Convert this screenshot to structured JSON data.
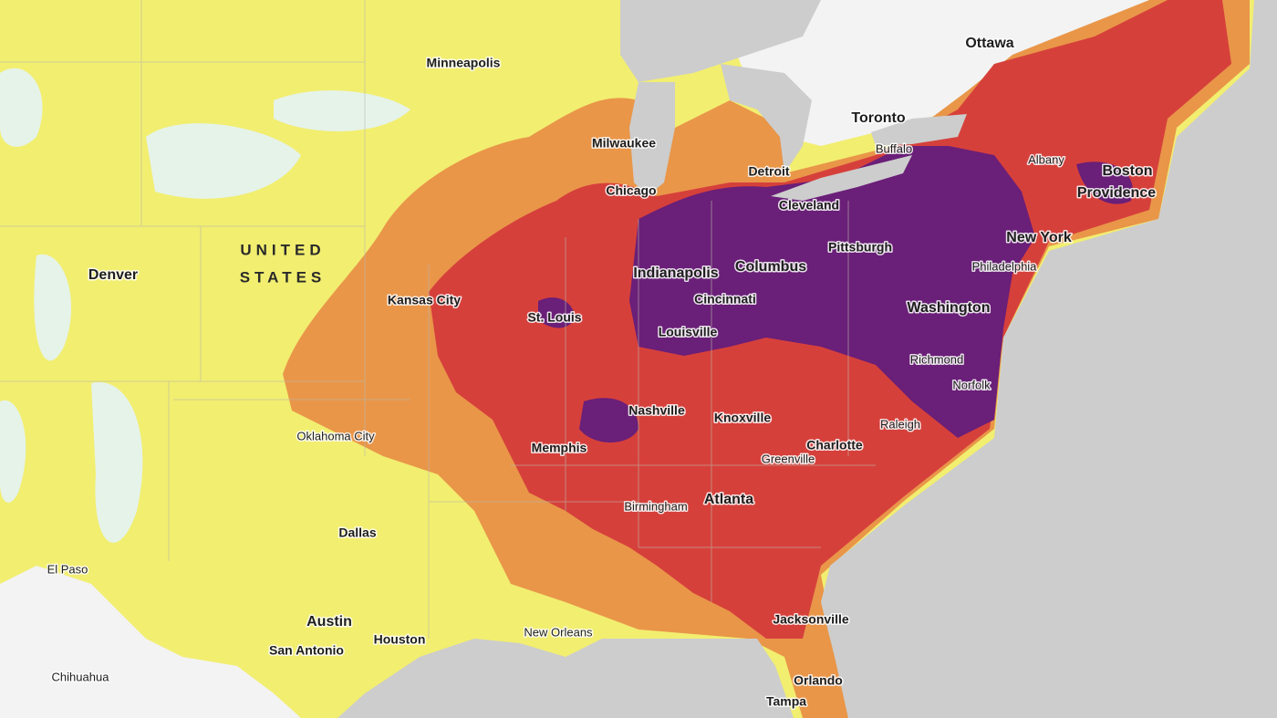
{
  "labels": [
    "Minneapolis",
    "Ottawa",
    "Toronto",
    "Milwaukee",
    "Buffalo",
    "Detroit",
    "Albany",
    "Boston",
    "Providence",
    "Chicago",
    "Cleveland",
    "Denver",
    "New York",
    "Pittsburgh",
    "Indianapolis",
    "Columbus",
    "Philadelphia",
    "Kansas City",
    "Cincinnati",
    "St. Louis",
    "Washington",
    "Louisville",
    "Richmond",
    "Norfolk",
    "Nashville",
    "Knoxville",
    "Raleigh",
    "Oklahoma City",
    "Memphis",
    "Charlotte",
    "Greenville",
    "Birmingham",
    "Atlanta",
    "Dallas",
    "El Paso",
    "Austin",
    "Jacksonville",
    "Houston",
    "New Orleans",
    "San Antonio",
    "Orlando",
    "Chihuahua",
    "Tampa"
  ],
  "country_label": [
    "UNITED",
    "STATES"
  ]
}
